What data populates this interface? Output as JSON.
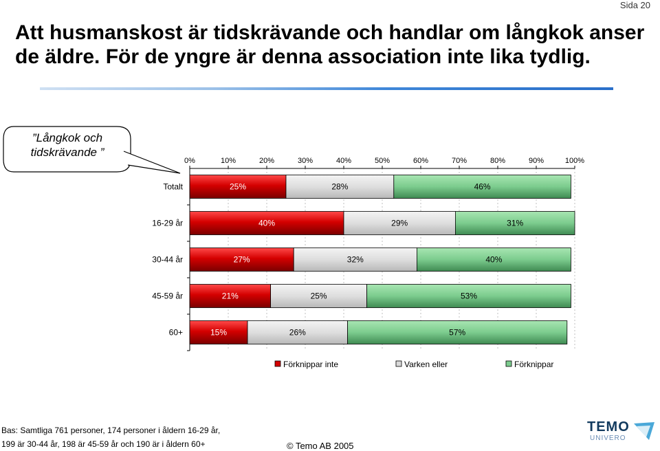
{
  "page": {
    "page_label": "Sida 20"
  },
  "headline": {
    "line1": "Att husmanskost är tidskrävande och handlar om långkok anser",
    "line2": "de äldre. För de yngre är denna association inte lika tydlig."
  },
  "callout": {
    "line1": "”Långkok och",
    "line2": "tidskrävande ”"
  },
  "chart_data": {
    "type": "bar",
    "orientation": "horizontal",
    "stacked": true,
    "categories": [
      "Totalt",
      "16-29 år",
      "30-44 år",
      "45-59 år",
      "60+"
    ],
    "series": [
      {
        "name": "Förknippar inte",
        "values": [
          25,
          40,
          27,
          21,
          15
        ],
        "color": "#d40000"
      },
      {
        "name": "Varken eller",
        "values": [
          28,
          29,
          32,
          25,
          26
        ],
        "color": "#d9d9d9"
      },
      {
        "name": "Förknippar",
        "values": [
          46,
          31,
          40,
          53,
          57
        ],
        "color": "#7ccc8e"
      }
    ],
    "x_ticks": [
      "0%",
      "10%",
      "20%",
      "30%",
      "40%",
      "50%",
      "60%",
      "70%",
      "80%",
      "90%",
      "100%"
    ],
    "xlim": [
      0,
      100
    ],
    "value_suffix": "%",
    "grid": true,
    "legend_position": "bottom"
  },
  "footer": {
    "base_line1": "Bas: Samtliga 761 personer, 174 personer i åldern 16-29 år,",
    "base_line2": "199 är 30-44 år, 198 är 45-59 år och 190 är i åldern 60+",
    "copyright": "©  Temo AB 2005",
    "logo_name": "TEMO",
    "logo_sub": "UNIVERO"
  }
}
